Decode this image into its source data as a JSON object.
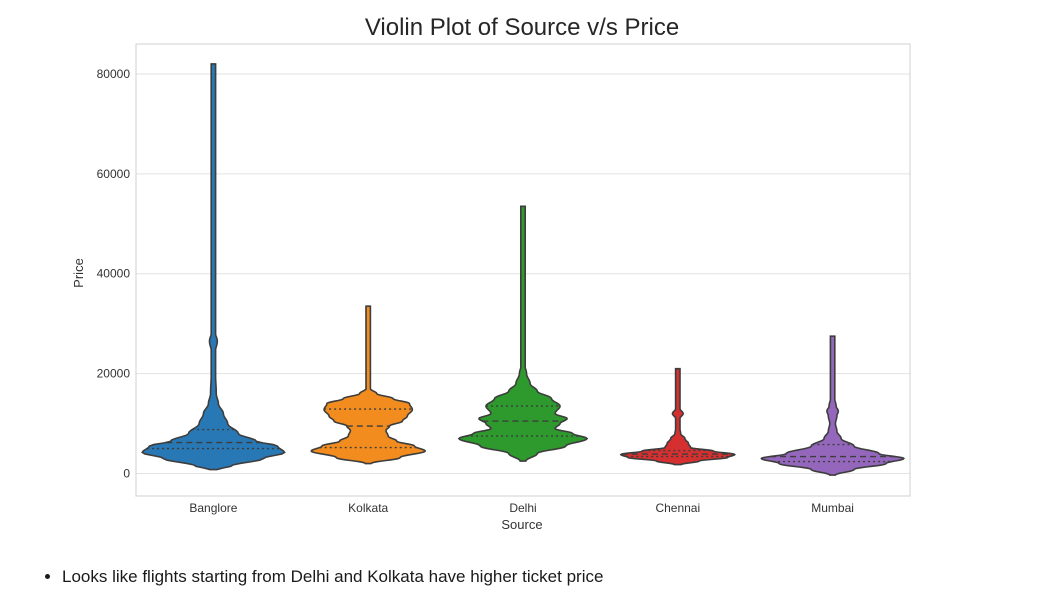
{
  "chart_data": {
    "type": "violin",
    "title": "Violin Plot of Source v/s Price",
    "xlabel": "Source",
    "ylabel": "Price",
    "ylim": [
      -4500,
      86000
    ],
    "yticks": [
      0,
      20000,
      40000,
      60000,
      80000
    ],
    "ytick_labels": [
      "0",
      "20000",
      "40000",
      "60000",
      "80000"
    ],
    "grid": true,
    "inner": "quartile",
    "categories": [
      "Banglore",
      "Kolkata",
      "Delhi",
      "Chennai",
      "Mumbai"
    ],
    "colors": [
      "#2878b5",
      "#f28c1e",
      "#2e9a2e",
      "#d62f2f",
      "#9467bd"
    ],
    "series": [
      {
        "name": "Banglore",
        "min": 800,
        "q1": 5000,
        "median": 6200,
        "q3": 8800,
        "max": 82000,
        "profile": [
          [
            800,
            0.05
          ],
          [
            1500,
            0.25
          ],
          [
            3000,
            0.7
          ],
          [
            4200,
            1.0
          ],
          [
            5500,
            0.9
          ],
          [
            6500,
            0.6
          ],
          [
            8000,
            0.35
          ],
          [
            10000,
            0.2
          ],
          [
            12000,
            0.14
          ],
          [
            14000,
            0.07
          ],
          [
            16000,
            0.04
          ],
          [
            20000,
            0.03
          ],
          [
            24000,
            0.02
          ],
          [
            26500,
            0.055
          ],
          [
            28500,
            0.02
          ],
          [
            32000,
            0.012
          ],
          [
            40000,
            0.01
          ],
          [
            60000,
            0.008
          ],
          [
            82000,
            0.005
          ]
        ]
      },
      {
        "name": "Kolkata",
        "min": 2000,
        "q1": 5200,
        "median": 9500,
        "q3": 12900,
        "max": 33500,
        "profile": [
          [
            2000,
            0.04
          ],
          [
            3200,
            0.45
          ],
          [
            4500,
            0.8
          ],
          [
            5500,
            0.65
          ],
          [
            6500,
            0.4
          ],
          [
            7500,
            0.28
          ],
          [
            8600,
            0.25
          ],
          [
            9500,
            0.3
          ],
          [
            10500,
            0.48
          ],
          [
            11500,
            0.55
          ],
          [
            12800,
            0.62
          ],
          [
            14000,
            0.58
          ],
          [
            15000,
            0.35
          ],
          [
            16000,
            0.12
          ],
          [
            17000,
            0.03
          ],
          [
            20000,
            0.02
          ],
          [
            33500,
            0.012
          ]
        ]
      },
      {
        "name": "Delhi",
        "min": 2500,
        "q1": 7500,
        "median": 10500,
        "q3": 13500,
        "max": 53500,
        "profile": [
          [
            2500,
            0.04
          ],
          [
            4000,
            0.2
          ],
          [
            5500,
            0.6
          ],
          [
            7000,
            0.9
          ],
          [
            8000,
            0.7
          ],
          [
            9000,
            0.45
          ],
          [
            10000,
            0.52
          ],
          [
            11000,
            0.62
          ],
          [
            12000,
            0.45
          ],
          [
            13500,
            0.52
          ],
          [
            15000,
            0.4
          ],
          [
            16500,
            0.2
          ],
          [
            18000,
            0.1
          ],
          [
            20000,
            0.05
          ],
          [
            22000,
            0.02
          ],
          [
            30000,
            0.012
          ],
          [
            53500,
            0.008
          ]
        ]
      },
      {
        "name": "Chennai",
        "min": 1800,
        "q1": 3400,
        "median": 3900,
        "q3": 4600,
        "max": 21000,
        "profile": [
          [
            1800,
            0.05
          ],
          [
            2500,
            0.3
          ],
          [
            3200,
            0.7
          ],
          [
            3800,
            0.8
          ],
          [
            4500,
            0.5
          ],
          [
            5200,
            0.18
          ],
          [
            6000,
            0.15
          ],
          [
            7000,
            0.1
          ],
          [
            8000,
            0.04
          ],
          [
            9500,
            0.02
          ],
          [
            11000,
            0.03
          ],
          [
            12000,
            0.075
          ],
          [
            13000,
            0.03
          ],
          [
            14500,
            0.012
          ],
          [
            21000,
            0.008
          ]
        ]
      },
      {
        "name": "Mumbai",
        "min": -300,
        "q1": 2400,
        "median": 3400,
        "q3": 5800,
        "max": 27500,
        "profile": [
          [
            -300,
            0.04
          ],
          [
            800,
            0.3
          ],
          [
            2000,
            0.75
          ],
          [
            3000,
            1.0
          ],
          [
            4000,
            0.65
          ],
          [
            5500,
            0.3
          ],
          [
            7000,
            0.12
          ],
          [
            8500,
            0.06
          ],
          [
            10000,
            0.04
          ],
          [
            11500,
            0.06
          ],
          [
            12500,
            0.08
          ],
          [
            13500,
            0.05
          ],
          [
            15000,
            0.03
          ],
          [
            18000,
            0.02
          ],
          [
            22000,
            0.02
          ],
          [
            25000,
            0.015
          ],
          [
            27500,
            0.008
          ]
        ]
      }
    ]
  },
  "notes": [
    "Looks like flights starting from Delhi and Kolkata have higher ticket price"
  ]
}
